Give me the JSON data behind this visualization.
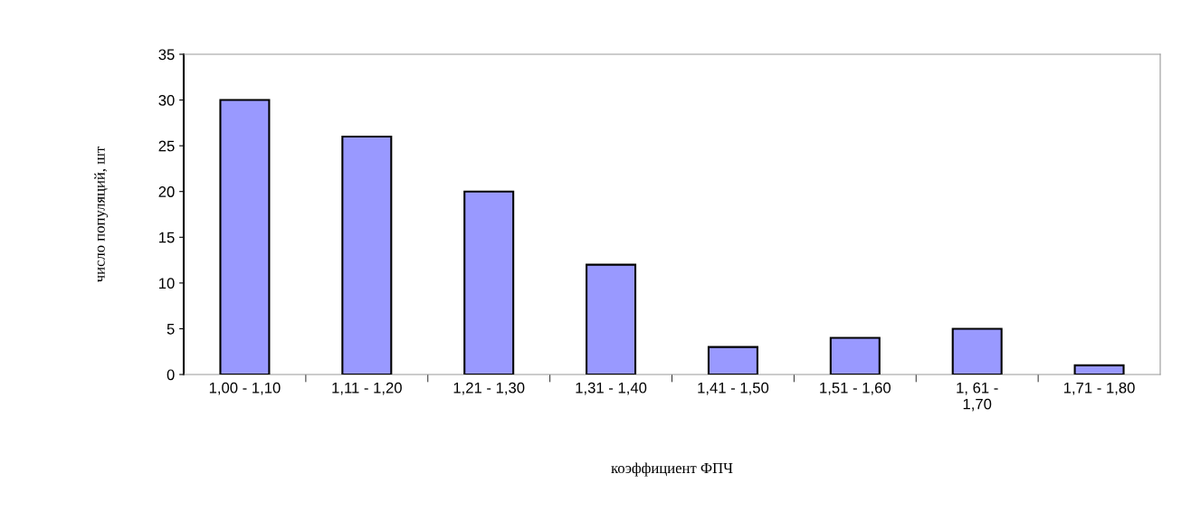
{
  "chart_data": {
    "type": "bar",
    "xlabel": "коэффициент ФПЧ",
    "ylabel": "число популяций, шт",
    "categories": [
      "1,00 - 1,10",
      "1,11 - 1,20",
      "1,21 - 1,30",
      "1,31 - 1,40",
      "1,41 - 1,50",
      "1,51 - 1,60",
      "1, 61 -\n1,70",
      "1,71 - 1,80"
    ],
    "values": [
      30,
      26,
      20,
      12,
      3,
      4,
      5,
      1
    ],
    "color": "#9999ff",
    "ylim": [
      0,
      35
    ],
    "yticks": [
      0,
      5,
      10,
      15,
      20,
      25,
      30,
      35
    ],
    "grid": false,
    "legend": false
  }
}
